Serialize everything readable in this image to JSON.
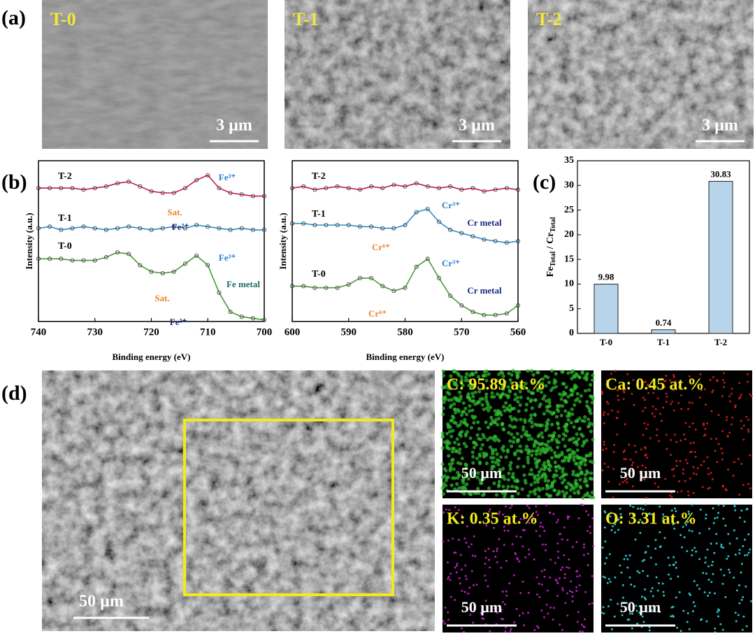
{
  "panels": {
    "a": "(a)",
    "b": "(b)",
    "c": "(c)",
    "d": "(d)"
  },
  "sem": [
    {
      "label": "T-0",
      "scale_bar": "3 µm"
    },
    {
      "label": "T-1",
      "scale_bar": "3 µm"
    },
    {
      "label": "T-2",
      "scale_bar": "3 µm"
    }
  ],
  "chart_data": [
    {
      "type": "line",
      "x_label": "Binding energy (eV)",
      "y_label": "Intensity (a.u.)",
      "x": [
        740,
        738,
        736,
        734,
        732,
        730,
        728,
        726,
        724,
        722,
        720,
        718,
        716,
        714,
        712,
        710,
        708,
        706,
        704,
        702,
        700
      ],
      "xlim": [
        740,
        700
      ],
      "xticks": [
        740,
        730,
        720,
        710,
        700
      ],
      "ylim": [
        0,
        100
      ],
      "series": [
        {
          "name": "T-2",
          "color": "#c8194b",
          "values": [
            83,
            83,
            83,
            83,
            82,
            83,
            84,
            86,
            87,
            84,
            81,
            80,
            80,
            83,
            88,
            91,
            83,
            80,
            79,
            78,
            78
          ]
        },
        {
          "name": "T-1",
          "color": "#2a8fc8",
          "values": [
            58,
            59,
            57,
            58,
            59,
            58,
            57,
            58,
            59,
            58,
            57,
            58,
            59,
            58,
            60,
            59,
            58,
            57,
            58,
            57,
            57
          ]
        },
        {
          "name": "T-0",
          "color": "#4a9a3a",
          "values": [
            39,
            39,
            39,
            38,
            38,
            38,
            40,
            43,
            42,
            35,
            31,
            30,
            31,
            36,
            41,
            35,
            18,
            6,
            3,
            2,
            1
          ]
        }
      ],
      "annotations": [
        "Fe³⁺",
        "Sat.",
        "Fe²⁺",
        "Fe³⁺",
        "Sat.",
        "Fe²⁺",
        "Fe metal"
      ]
    },
    {
      "type": "line",
      "x_label": "Binding energy (eV)",
      "y_label": "Intensity (a.u.)",
      "x": [
        600,
        598,
        596,
        594,
        592,
        590,
        588,
        586,
        584,
        582,
        580,
        578,
        576,
        574,
        572,
        570,
        568,
        566,
        564,
        562,
        560
      ],
      "xlim": [
        600,
        560
      ],
      "xticks": [
        600,
        590,
        580,
        570,
        560
      ],
      "ylim": [
        0,
        100
      ],
      "series": [
        {
          "name": "T-2",
          "color": "#c8194b",
          "values": [
            83,
            84,
            82,
            83,
            84,
            83,
            82,
            84,
            83,
            85,
            84,
            86,
            84,
            83,
            84,
            82,
            83,
            81,
            82,
            83,
            82
          ]
        },
        {
          "name": "T-1",
          "color": "#2a8fc8",
          "values": [
            61,
            61,
            60,
            60,
            60,
            60,
            59,
            59,
            58,
            58,
            60,
            68,
            70,
            62,
            57,
            55,
            53,
            51,
            50,
            49,
            50
          ]
        },
        {
          "name": "T-0",
          "color": "#4a9a3a",
          "values": [
            22,
            22,
            21,
            21,
            21,
            23,
            27,
            27,
            22,
            19,
            21,
            34,
            39,
            27,
            16,
            10,
            6,
            4,
            4,
            5,
            10
          ]
        }
      ],
      "annotations": [
        "Cr³⁺",
        "Cr⁶⁺",
        "Cr metal",
        "Cr³⁺",
        "Cr⁶⁺",
        "Cr metal"
      ]
    },
    {
      "type": "bar",
      "categories": [
        "T-0",
        "T-1",
        "T-2"
      ],
      "values": [
        9.98,
        0.74,
        30.83
      ],
      "color": "#b8d4ea",
      "ylim": [
        0,
        35
      ],
      "yticks": [
        0,
        5,
        10,
        15,
        20,
        25,
        30,
        35
      ],
      "y_label": {
        "main1": "Fe",
        "sub1": "Total",
        "main2": " / Cr",
        "sub2": "Total"
      }
    }
  ],
  "eds": {
    "scale_bar": "50 µm",
    "maps": [
      {
        "label": "C: 95.89 at.%",
        "scale_bar": "50 µm",
        "color": "#2fc02f"
      },
      {
        "label": "Ca: 0.45 at.%",
        "scale_bar": "50 µm",
        "color": "#d0201a"
      },
      {
        "label": "K: 0.35 at.%",
        "scale_bar": "50 µm",
        "color": "#c020c0"
      },
      {
        "label": "O: 3.31 at.%",
        "scale_bar": "50 µm",
        "color": "#30d0d0"
      }
    ]
  }
}
